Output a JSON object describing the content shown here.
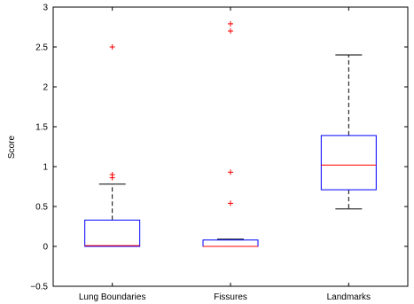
{
  "chart_data": {
    "type": "box",
    "title": "",
    "xlabel": "",
    "ylabel": "Score",
    "ylim": [
      -0.5,
      3
    ],
    "yticks": [
      -0.5,
      0,
      0.5,
      1,
      1.5,
      2,
      2.5,
      3
    ],
    "ytick_labels": [
      "−0.5",
      "0",
      "0.5",
      "1",
      "1.5",
      "2",
      "2.5",
      "3"
    ],
    "grid": false,
    "categories": [
      "Lung Boundaries",
      "Fissures",
      "Landmarks"
    ],
    "boxes": [
      {
        "name": "Lung Boundaries",
        "whisker_low": 0.0,
        "q1": 0.0,
        "median": 0.01,
        "q3": 0.33,
        "whisker_high": 0.78,
        "outliers": [
          0.86,
          0.9,
          2.5
        ]
      },
      {
        "name": "Fissures",
        "whisker_low": 0.0,
        "q1": 0.0,
        "median": 0.0,
        "q3": 0.08,
        "whisker_high": 0.09,
        "outliers": [
          0.54,
          0.93,
          2.7,
          2.79
        ]
      },
      {
        "name": "Landmarks",
        "whisker_low": 0.47,
        "q1": 0.71,
        "median": 1.02,
        "q3": 1.39,
        "whisker_high": 2.4,
        "outliers": []
      }
    ],
    "colors": {
      "box": "#0000ff",
      "median": "#ff0000",
      "whisker": "#000000",
      "outlier": "#ff0000",
      "axis": "#000000"
    }
  }
}
